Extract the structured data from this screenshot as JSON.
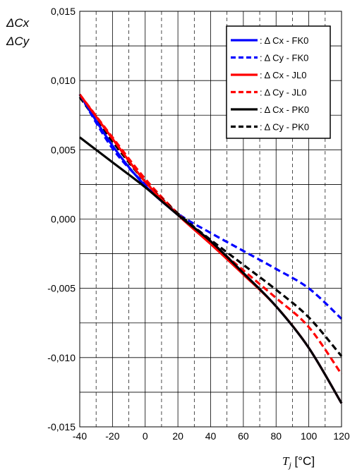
{
  "chart_data": {
    "type": "line",
    "ylabel": [
      "ΔCx",
      "ΔCy"
    ],
    "xlabel": {
      "var": "T",
      "sub": "j",
      "unit": " [°C]"
    },
    "xlim": [
      -40,
      120
    ],
    "ylim": [
      -0.015,
      0.015
    ],
    "xticks": [
      -40,
      -20,
      0,
      20,
      40,
      60,
      80,
      100,
      120
    ],
    "xtick_labels": [
      "-40",
      "-20",
      "0",
      "20",
      "40",
      "60",
      "80",
      "100",
      "120"
    ],
    "yticks": [
      -0.015,
      -0.01,
      -0.005,
      0,
      0.005,
      0.01,
      0.015
    ],
    "ytick_labels": [
      "-0,015",
      "-0,010",
      "-0,005",
      "0,000",
      "0,005",
      "0,010",
      "0,015"
    ],
    "grid": {
      "x_dashed_step": 10,
      "y_minor_step": 0.0025
    },
    "legend_position": "top-right",
    "series": [
      {
        "name": ": Δ Cx - FK0",
        "color": "#0000ff",
        "dash": "solid",
        "x": [
          -40,
          -20,
          0,
          20,
          40,
          60,
          80,
          100,
          120
        ],
        "y": [
          0.009,
          0.0053,
          0.0024,
          0.0003,
          -0.0016,
          -0.0039,
          -0.0063,
          -0.0093,
          -0.0133
        ]
      },
      {
        "name": ": Δ Cy - FK0",
        "color": "#0000ff",
        "dash": "dashed",
        "x": [
          -40,
          -20,
          0,
          20,
          40,
          60,
          80,
          100,
          120
        ],
        "y": [
          0.009,
          0.0051,
          0.0025,
          0.0004,
          -0.001,
          -0.0023,
          -0.0036,
          -0.005,
          -0.0072
        ]
      },
      {
        "name": ": Δ Cx - JL0",
        "color": "#ff0000",
        "dash": "solid",
        "x": [
          -40,
          -20,
          0,
          20,
          40,
          60,
          80,
          100,
          120
        ],
        "y": [
          0.009,
          0.0058,
          0.0027,
          0.0003,
          -0.0018,
          -0.004,
          -0.0063,
          -0.0093,
          -0.0133
        ]
      },
      {
        "name": ": Δ Cy - JL0",
        "color": "#ff0000",
        "dash": "dashed",
        "x": [
          -40,
          -20,
          0,
          20,
          40,
          60,
          80,
          100,
          120
        ],
        "y": [
          0.009,
          0.0059,
          0.0029,
          0.0004,
          -0.0017,
          -0.0037,
          -0.0057,
          -0.0078,
          -0.0112
        ]
      },
      {
        "name": ": Δ Cx - PK0",
        "color": "#000000",
        "dash": "solid",
        "x": [
          -40,
          -20,
          0,
          20,
          40,
          60,
          80,
          100,
          120
        ],
        "y": [
          0.0059,
          0.0041,
          0.0023,
          0.0003,
          -0.0016,
          -0.0039,
          -0.0063,
          -0.0093,
          -0.0133
        ]
      },
      {
        "name": ": Δ Cy - PK0",
        "color": "#000000",
        "dash": "dashed",
        "x": [
          -40,
          -20,
          0,
          20,
          40,
          60,
          80,
          100,
          120
        ],
        "y": [
          0.0088,
          0.0056,
          0.0027,
          0.0004,
          -0.0015,
          -0.0033,
          -0.0051,
          -0.0071,
          -0.0099
        ]
      }
    ]
  }
}
